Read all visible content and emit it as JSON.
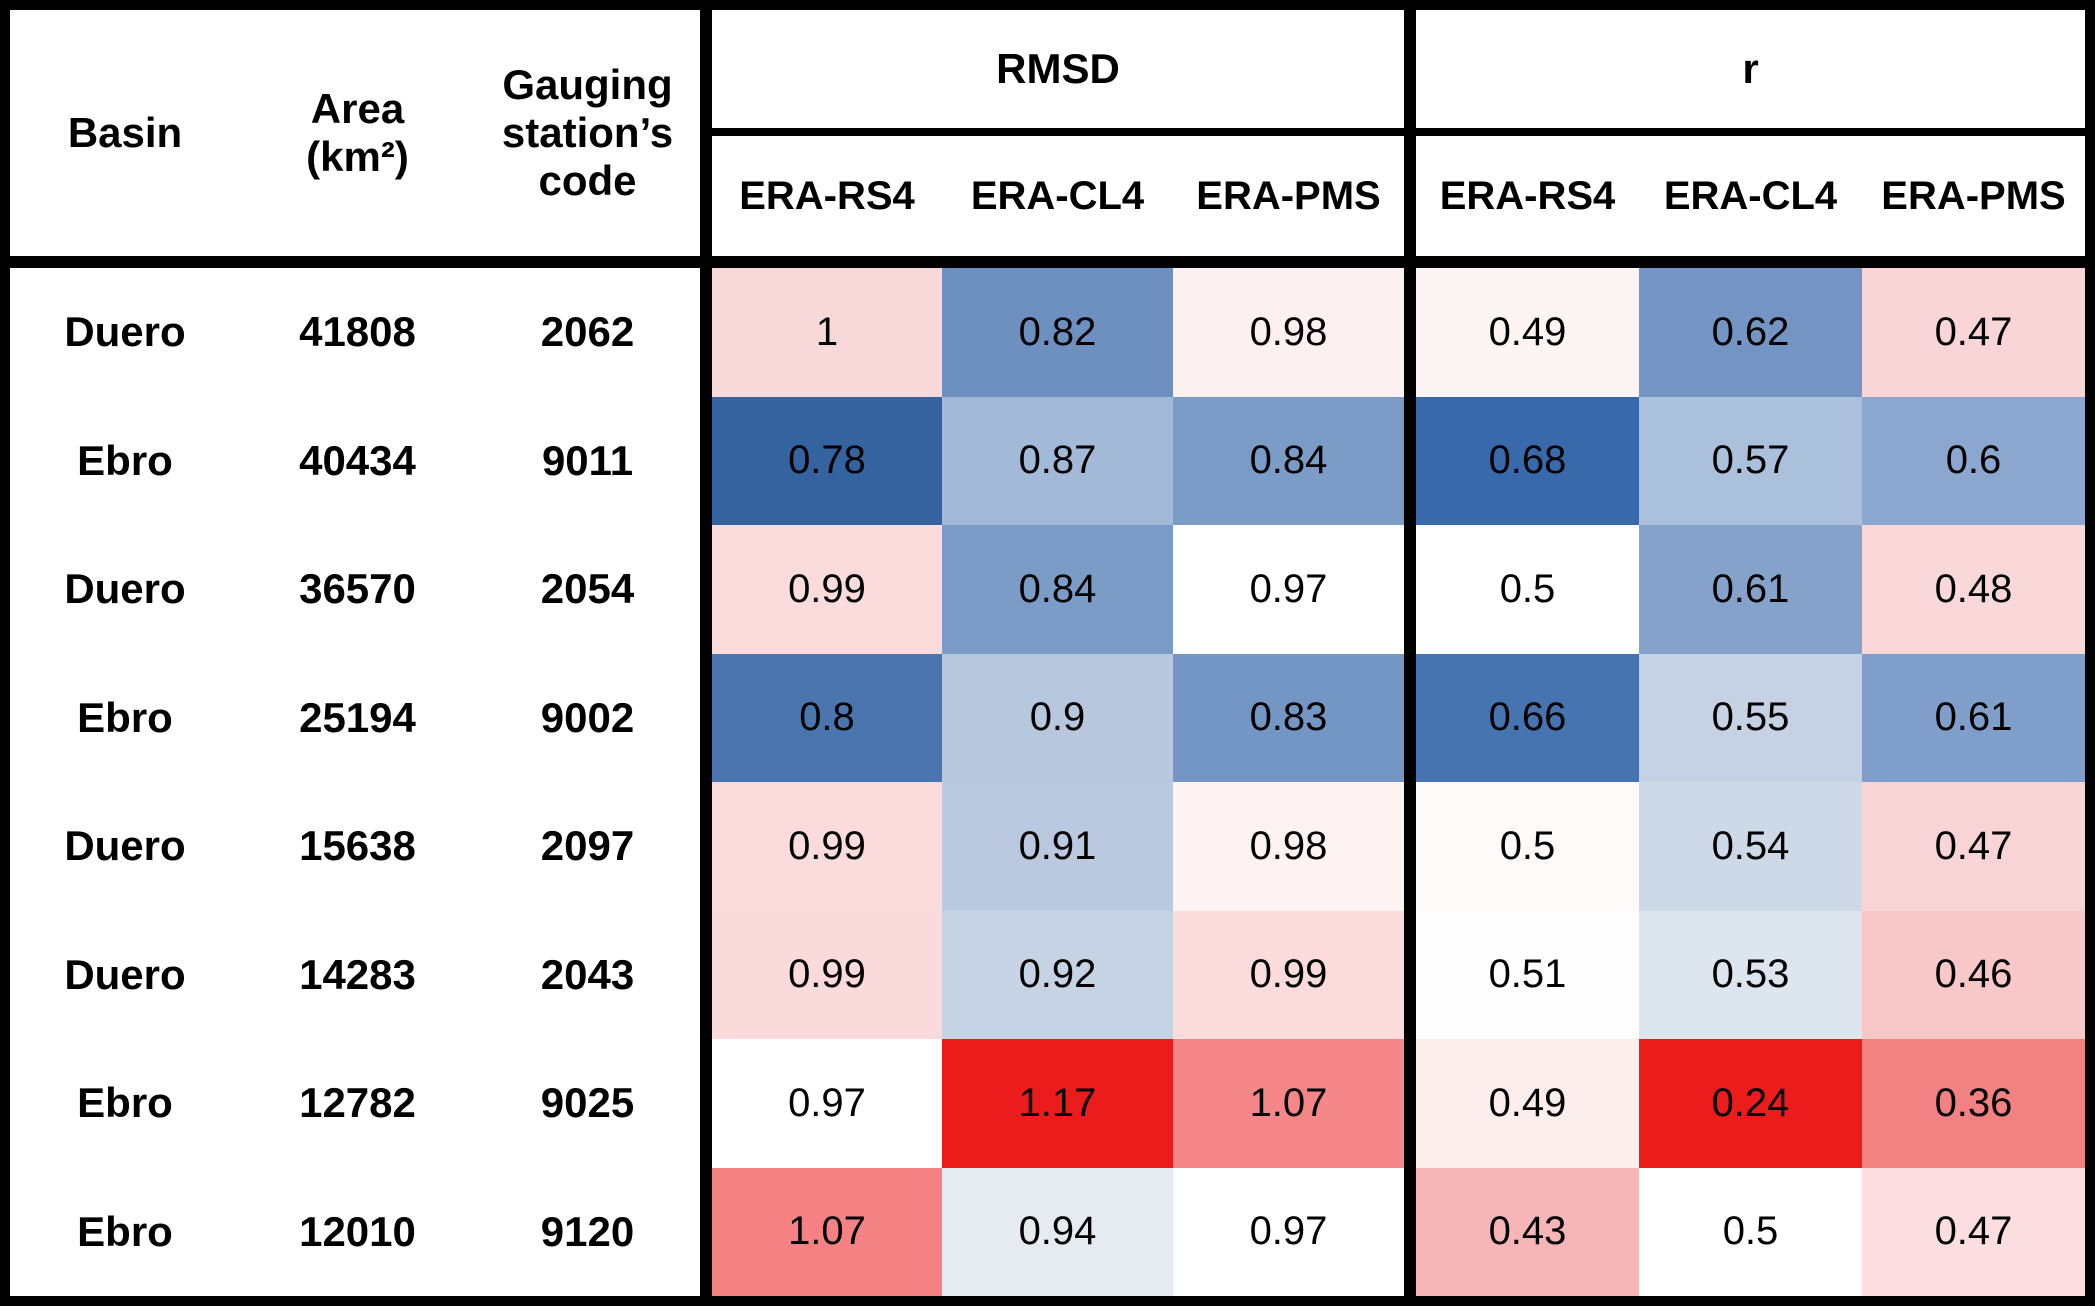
{
  "table": {
    "left_headers": [
      "Basin",
      "Area (km²)",
      "Gauging station’s code"
    ],
    "groups": [
      {
        "label": "RMSD",
        "columns": [
          "ERA-RS4",
          "ERA-CL4",
          "ERA-PMS"
        ]
      },
      {
        "label": "r",
        "columns": [
          "ERA-RS4",
          "ERA-CL4",
          "ERA-PMS"
        ]
      }
    ],
    "rows": [
      {
        "basin": "Duero",
        "area": "41808",
        "code": "2062",
        "rmsd": [
          {
            "value": "1",
            "color": "#f9d8da"
          },
          {
            "value": "0.82",
            "color": "#6d90c0"
          },
          {
            "value": "0.98",
            "color": "#fdf0f1"
          }
        ],
        "r": [
          {
            "value": "0.49",
            "color": "#fdf4f4"
          },
          {
            "value": "0.62",
            "color": "#7495c3"
          },
          {
            "value": "0.47",
            "color": "#f9d5d7"
          }
        ]
      },
      {
        "basin": "Ebro",
        "area": "40434",
        "code": "9011",
        "rmsd": [
          {
            "value": "0.78",
            "color": "#34639f"
          },
          {
            "value": "0.87",
            "color": "#a3b9d8"
          },
          {
            "value": "0.84",
            "color": "#7b9cc7"
          }
        ],
        "r": [
          {
            "value": "0.68",
            "color": "#386aab"
          },
          {
            "value": "0.57",
            "color": "#abc0db"
          },
          {
            "value": "0.6",
            "color": "#8ba7cf"
          }
        ]
      },
      {
        "basin": "Duero",
        "area": "36570",
        "code": "2054",
        "rmsd": [
          {
            "value": "0.99",
            "color": "#fbdbdc"
          },
          {
            "value": "0.84",
            "color": "#7b9cc7"
          },
          {
            "value": "0.97",
            "color": "#ffffff"
          }
        ],
        "r": [
          {
            "value": "0.5",
            "color": "#ffffff"
          },
          {
            "value": "0.61",
            "color": "#85a2ca"
          },
          {
            "value": "0.48",
            "color": "#fad8da"
          }
        ]
      },
      {
        "basin": "Ebro",
        "area": "25194",
        "code": "9002",
        "rmsd": [
          {
            "value": "0.8",
            "color": "#4a75ae"
          },
          {
            "value": "0.9",
            "color": "#b7c8de"
          },
          {
            "value": "0.83",
            "color": "#7496c4"
          }
        ],
        "r": [
          {
            "value": "0.66",
            "color": "#4674b0"
          },
          {
            "value": "0.55",
            "color": "#c5d2e4"
          },
          {
            "value": "0.61",
            "color": "#7f9ec9"
          }
        ]
      },
      {
        "basin": "Duero",
        "area": "15638",
        "code": "2097",
        "rmsd": [
          {
            "value": "0.99",
            "color": "#fbdbdc"
          },
          {
            "value": "0.91",
            "color": "#bac9df"
          },
          {
            "value": "0.98",
            "color": "#fef3f3"
          }
        ],
        "r": [
          {
            "value": "0.5",
            "color": "#fefafa"
          },
          {
            "value": "0.54",
            "color": "#cdd9e7"
          },
          {
            "value": "0.47",
            "color": "#f9d4d6"
          }
        ]
      },
      {
        "basin": "Duero",
        "area": "14283",
        "code": "2043",
        "rmsd": [
          {
            "value": "0.99",
            "color": "#fbdadb"
          },
          {
            "value": "0.92",
            "color": "#c6d3e5"
          },
          {
            "value": "0.99",
            "color": "#fbdbdc"
          }
        ],
        "r": [
          {
            "value": "0.51",
            "color": "#fefefe"
          },
          {
            "value": "0.53",
            "color": "#dde5ee"
          },
          {
            "value": "0.46",
            "color": "#f8c7c8"
          }
        ]
      },
      {
        "basin": "Ebro",
        "area": "12782",
        "code": "9025",
        "rmsd": [
          {
            "value": "0.97",
            "color": "#ffffff"
          },
          {
            "value": "1.17",
            "color": "#ec1c1c"
          },
          {
            "value": "1.07",
            "color": "#f58788"
          }
        ],
        "r": [
          {
            "value": "0.49",
            "color": "#fdeeee"
          },
          {
            "value": "0.24",
            "color": "#ec1c1c"
          },
          {
            "value": "0.36",
            "color": "#f28182"
          }
        ]
      },
      {
        "basin": "Ebro",
        "area": "12010",
        "code": "9120",
        "rmsd": [
          {
            "value": "1.07",
            "color": "#f58283"
          },
          {
            "value": "0.94",
            "color": "#e6ebf2"
          },
          {
            "value": "0.97",
            "color": "#ffffff"
          }
        ],
        "r": [
          {
            "value": "0.43",
            "color": "#f6b6b7"
          },
          {
            "value": "0.5",
            "color": "#ffffff"
          },
          {
            "value": "0.47",
            "color": "#fcdee1"
          }
        ]
      }
    ]
  },
  "chart_data": {
    "type": "heatmap",
    "title": "",
    "columns": [
      "Basin",
      "Area (km²)",
      "Gauging station’s code",
      "RMSD ERA-RS4",
      "RMSD ERA-CL4",
      "RMSD ERA-PMS",
      "r ERA-RS4",
      "r ERA-CL4",
      "r ERA-PMS"
    ],
    "rows": [
      [
        "Duero",
        41808,
        "2062",
        1,
        0.82,
        0.98,
        0.49,
        0.62,
        0.47
      ],
      [
        "Ebro",
        40434,
        "9011",
        0.78,
        0.87,
        0.84,
        0.68,
        0.57,
        0.6
      ],
      [
        "Duero",
        36570,
        "2054",
        0.99,
        0.84,
        0.97,
        0.5,
        0.61,
        0.48
      ],
      [
        "Ebro",
        25194,
        "9002",
        0.8,
        0.9,
        0.83,
        0.66,
        0.55,
        0.61
      ],
      [
        "Duero",
        15638,
        "2097",
        0.99,
        0.91,
        0.98,
        0.5,
        0.54,
        0.47
      ],
      [
        "Duero",
        14283,
        "2043",
        0.99,
        0.92,
        0.99,
        0.51,
        0.53,
        0.46
      ],
      [
        "Ebro",
        12782,
        "9025",
        0.97,
        1.17,
        1.07,
        0.49,
        0.24,
        0.36
      ],
      [
        "Ebro",
        12010,
        "9120",
        1.07,
        0.94,
        0.97,
        0.43,
        0.5,
        0.47
      ]
    ],
    "color_scale": {
      "palette": "diverging red-white-blue",
      "blue_hex": "#34639f",
      "red_hex": "#ec1c1c",
      "meaning": "blue = low RMSD / high r, red = high RMSD / low r, white ≈ RMSD 0.97 / r 0.5"
    },
    "legend_position": "none",
    "grid": false
  }
}
